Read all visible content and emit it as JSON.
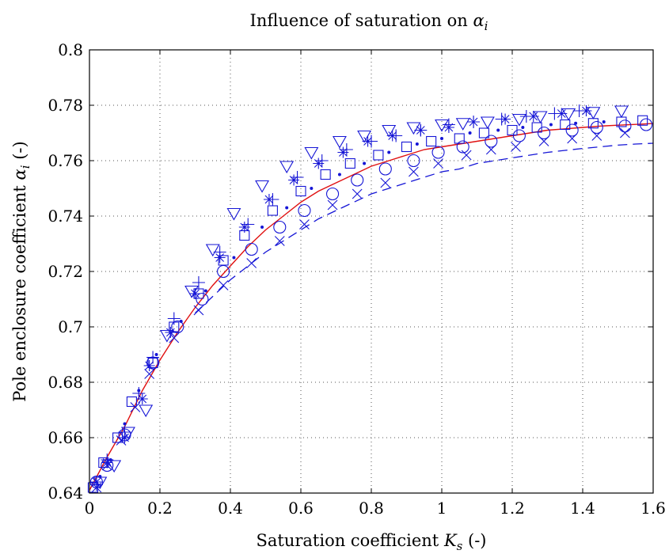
{
  "chart_data": {
    "type": "scatter",
    "title_prefix": "Influence of saturation on ",
    "title_math": "α",
    "title_math_sub": "i",
    "xlabel_prefix": "Saturation coefficient ",
    "xlabel_math": "K",
    "xlabel_math_sub": "s",
    "xlabel_suffix": " (-)",
    "ylabel_prefix": "Pole enclosure coefficient ",
    "ylabel_math": "α",
    "ylabel_math_sub": "i",
    "ylabel_suffix": " (-)",
    "xlim": [
      0,
      1.6
    ],
    "ylim": [
      0.64,
      0.8
    ],
    "x_ticks": [
      0,
      0.2,
      0.4,
      0.6,
      0.8,
      1,
      1.2,
      1.4,
      1.6
    ],
    "x_tick_labels": [
      "0",
      "0.2",
      "0.4",
      "0.6",
      "0.8",
      "1",
      "1.2",
      "1.4",
      "1.6"
    ],
    "y_ticks": [
      0.64,
      0.66,
      0.68,
      0.7,
      0.72,
      0.74,
      0.76,
      0.78,
      0.8
    ],
    "y_tick_labels": [
      "0.64",
      "0.66",
      "0.68",
      "0.7",
      "0.72",
      "0.74",
      "0.76",
      "0.78",
      "0.8"
    ],
    "grid": true,
    "colors": {
      "markers": "#1515d6",
      "fit_curve": "#e01010",
      "dashed_curve": "#1515d6"
    },
    "lines": [
      {
        "style": "solid",
        "color": "#e01010",
        "x": [
          0,
          0.05,
          0.1,
          0.15,
          0.2,
          0.25,
          0.3,
          0.35,
          0.4,
          0.45,
          0.5,
          0.55,
          0.6,
          0.65,
          0.7,
          0.75,
          0.8,
          0.85,
          0.9,
          0.95,
          1.0,
          1.05,
          1.1,
          1.15,
          1.2,
          1.25,
          1.3,
          1.35,
          1.4,
          1.45,
          1.5,
          1.55,
          1.6
        ],
        "y": [
          0.641,
          0.653,
          0.664,
          0.677,
          0.688,
          0.698,
          0.707,
          0.715,
          0.722,
          0.729,
          0.735,
          0.74,
          0.745,
          0.749,
          0.752,
          0.755,
          0.758,
          0.76,
          0.762,
          0.764,
          0.765,
          0.766,
          0.767,
          0.768,
          0.769,
          0.77,
          0.771,
          0.7715,
          0.772,
          0.7725,
          0.7728,
          0.7731,
          0.7734
        ]
      },
      {
        "style": "dashed",
        "color": "#1515d6",
        "x": [
          0.3,
          0.35,
          0.4,
          0.45,
          0.5,
          0.55,
          0.6,
          0.65,
          0.7,
          0.75,
          0.8,
          0.85,
          0.9,
          0.95,
          1.0,
          1.05,
          1.1,
          1.15,
          1.2,
          1.25,
          1.3,
          1.35,
          1.4,
          1.45,
          1.5,
          1.55,
          1.6
        ],
        "y": [
          0.705,
          0.711,
          0.717,
          0.722,
          0.727,
          0.731,
          0.735,
          0.739,
          0.742,
          0.745,
          0.748,
          0.75,
          0.752,
          0.754,
          0.756,
          0.757,
          0.759,
          0.76,
          0.761,
          0.762,
          0.763,
          0.7637,
          0.7644,
          0.765,
          0.7656,
          0.766,
          0.7663
        ]
      }
    ],
    "series": [
      {
        "marker": "circle",
        "x": [
          0.02,
          0.05,
          0.1,
          0.18,
          0.25,
          0.32,
          0.38,
          0.46,
          0.54,
          0.61,
          0.69,
          0.76,
          0.84,
          0.92,
          0.99,
          1.06,
          1.14,
          1.22,
          1.29,
          1.37,
          1.44,
          1.52,
          1.58
        ],
        "y": [
          0.644,
          0.65,
          0.661,
          0.687,
          0.7,
          0.71,
          0.72,
          0.728,
          0.736,
          0.742,
          0.748,
          0.753,
          0.757,
          0.76,
          0.763,
          0.765,
          0.767,
          0.769,
          0.77,
          0.771,
          0.772,
          0.7725,
          0.773
        ]
      },
      {
        "marker": "x",
        "x": [
          0.02,
          0.05,
          0.09,
          0.13,
          0.17,
          0.24,
          0.31,
          0.38,
          0.46,
          0.54,
          0.61,
          0.69,
          0.76,
          0.84,
          0.92,
          0.99,
          1.07,
          1.14,
          1.21,
          1.29,
          1.37,
          1.44,
          1.52
        ],
        "y": [
          0.642,
          0.65,
          0.659,
          0.671,
          0.683,
          0.696,
          0.706,
          0.715,
          0.723,
          0.731,
          0.737,
          0.744,
          0.748,
          0.752,
          0.756,
          0.759,
          0.762,
          0.764,
          0.765,
          0.767,
          0.768,
          0.769,
          0.77
        ]
      },
      {
        "marker": "dot",
        "x": [
          0.03,
          0.06,
          0.1,
          0.14,
          0.19,
          0.26,
          0.33,
          0.41,
          0.49,
          0.56,
          0.63,
          0.71,
          0.78,
          0.85,
          0.93,
          1.0,
          1.08,
          1.16,
          1.23,
          1.31,
          1.38,
          1.46
        ],
        "y": [
          0.646,
          0.652,
          0.665,
          0.677,
          0.69,
          0.702,
          0.713,
          0.725,
          0.736,
          0.743,
          0.75,
          0.755,
          0.759,
          0.763,
          0.766,
          0.768,
          0.77,
          0.771,
          0.772,
          0.773,
          0.7735,
          0.774
        ]
      },
      {
        "marker": "square",
        "x": [
          0.01,
          0.04,
          0.08,
          0.12,
          0.18,
          0.24,
          0.31,
          0.38,
          0.44,
          0.52,
          0.6,
          0.67,
          0.74,
          0.82,
          0.9,
          0.97,
          1.05,
          1.12,
          1.2,
          1.27,
          1.35,
          1.43,
          1.51,
          1.57
        ],
        "y": [
          0.642,
          0.651,
          0.66,
          0.673,
          0.687,
          0.7,
          0.712,
          0.724,
          0.733,
          0.742,
          0.749,
          0.755,
          0.759,
          0.762,
          0.765,
          0.767,
          0.768,
          0.77,
          0.771,
          0.772,
          0.773,
          0.7735,
          0.774,
          0.7745
        ]
      },
      {
        "marker": "star",
        "x": [
          0.02,
          0.05,
          0.1,
          0.15,
          0.17,
          0.23,
          0.3,
          0.37,
          0.44,
          0.51,
          0.58,
          0.65,
          0.72,
          0.79,
          0.86,
          0.94,
          1.02,
          1.09,
          1.18,
          1.26,
          1.34,
          1.41
        ],
        "y": [
          0.644,
          0.651,
          0.66,
          0.674,
          0.686,
          0.698,
          0.712,
          0.725,
          0.736,
          0.746,
          0.753,
          0.759,
          0.763,
          0.767,
          0.769,
          0.771,
          0.772,
          0.774,
          0.775,
          0.776,
          0.777,
          0.778
        ]
      },
      {
        "marker": "plus",
        "x": [
          0.02,
          0.05,
          0.1,
          0.14,
          0.18,
          0.24,
          0.31,
          0.37,
          0.45,
          0.52,
          0.59,
          0.66,
          0.73,
          0.8,
          0.87,
          0.94,
          1.02,
          1.09,
          1.17,
          1.24,
          1.32,
          1.39
        ],
        "y": [
          0.643,
          0.652,
          0.662,
          0.676,
          0.689,
          0.703,
          0.716,
          0.727,
          0.737,
          0.746,
          0.754,
          0.76,
          0.764,
          0.767,
          0.769,
          0.771,
          0.773,
          0.774,
          0.775,
          0.776,
          0.777,
          0.778
        ]
      },
      {
        "marker": "triangle-down",
        "x": [
          0.03,
          0.07,
          0.11,
          0.16,
          0.22,
          0.29,
          0.35,
          0.41,
          0.49,
          0.56,
          0.63,
          0.71,
          0.78,
          0.85,
          0.92,
          1.0,
          1.06,
          1.13,
          1.22,
          1.28,
          1.36,
          1.43,
          1.51
        ],
        "y": [
          0.644,
          0.65,
          0.662,
          0.67,
          0.697,
          0.713,
          0.728,
          0.741,
          0.751,
          0.758,
          0.763,
          0.767,
          0.769,
          0.771,
          0.772,
          0.773,
          0.7735,
          0.774,
          0.775,
          0.776,
          0.777,
          0.7775,
          0.778
        ]
      }
    ]
  }
}
